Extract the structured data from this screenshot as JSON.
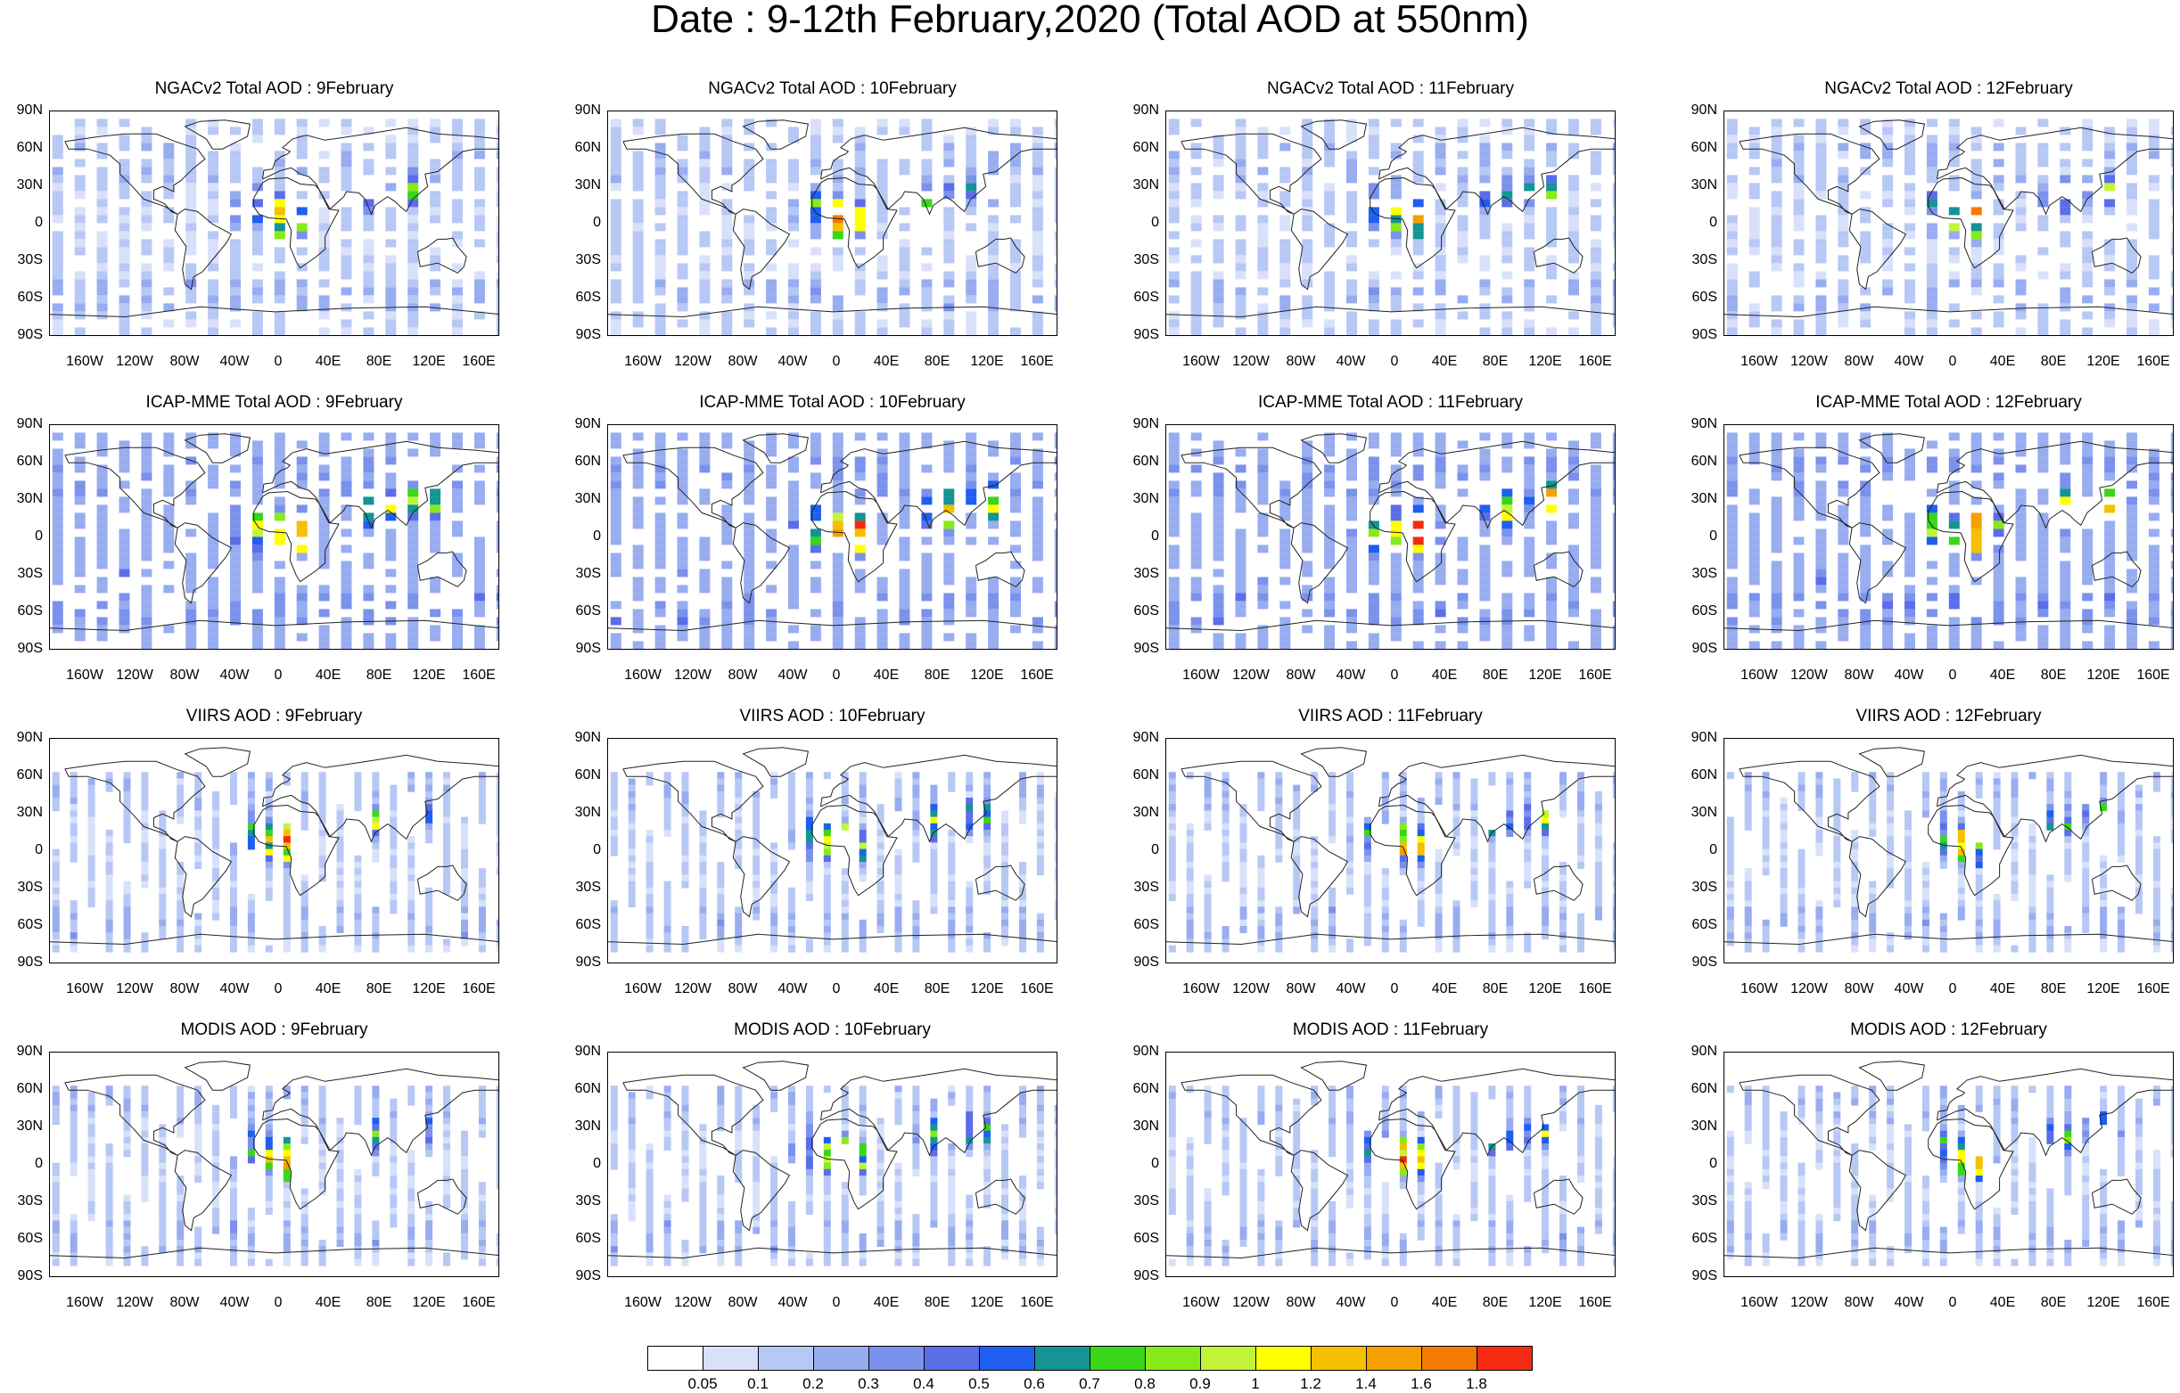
{
  "title": "Date : 9-12th February,2020 (Total AOD at 550nm)",
  "panels": [
    {
      "title": "NGACv2 Total AOD : 9February",
      "model": "NGACv2",
      "day": 9
    },
    {
      "title": "NGACv2 Total AOD : 10February",
      "model": "NGACv2",
      "day": 10
    },
    {
      "title": "NGACv2 Total AOD : 11February",
      "model": "NGACv2",
      "day": 11
    },
    {
      "title": "NGACv2 Total AOD : 12February",
      "model": "NGACv2",
      "day": 12
    },
    {
      "title": "ICAP-MME Total AOD : 9February",
      "model": "ICAP-MME",
      "day": 9
    },
    {
      "title": "ICAP-MME Total AOD : 10February",
      "model": "ICAP-MME",
      "day": 10
    },
    {
      "title": "ICAP-MME Total AOD : 11February",
      "model": "ICAP-MME",
      "day": 11
    },
    {
      "title": "ICAP-MME Total AOD : 12February",
      "model": "ICAP-MME",
      "day": 12
    },
    {
      "title": "VIIRS AOD : 9February",
      "model": "VIIRS",
      "day": 9
    },
    {
      "title": "VIIRS AOD : 10February",
      "model": "VIIRS",
      "day": 10
    },
    {
      "title": "VIIRS AOD : 11February",
      "model": "VIIRS",
      "day": 11
    },
    {
      "title": "VIIRS AOD : 12February",
      "model": "VIIRS",
      "day": 12
    },
    {
      "title": "MODIS AOD : 9February",
      "model": "MODIS",
      "day": 9
    },
    {
      "title": "MODIS AOD : 10February",
      "model": "MODIS",
      "day": 10
    },
    {
      "title": "MODIS AOD : 11February",
      "model": "MODIS",
      "day": 11
    },
    {
      "title": "MODIS AOD : 12February",
      "model": "MODIS",
      "day": 12
    }
  ],
  "lat_labels": [
    "90N",
    "60N",
    "30N",
    "0",
    "30S",
    "60S",
    "90S"
  ],
  "lon_labels": [
    "160W",
    "120W",
    "80W",
    "40W",
    "0",
    "40E",
    "80E",
    "120E",
    "160E"
  ],
  "colorbar": {
    "labels": [
      "0.05",
      "0.1",
      "0.2",
      "0.3",
      "0.4",
      "0.5",
      "0.6",
      "0.7",
      "0.8",
      "0.9",
      "1",
      "1.2",
      "1.4",
      "1.6",
      "1.8"
    ],
    "colors": [
      "#ffffff",
      "#d9e1fa",
      "#b8c8f5",
      "#98adf0",
      "#7b92ec",
      "#5b6ee8",
      "#1f5ff0",
      "#149494",
      "#3ad61a",
      "#88ea1a",
      "#c2f53a",
      "#ffff00",
      "#f5c000",
      "#f5a000",
      "#f57a00",
      "#f52a10"
    ]
  }
}
